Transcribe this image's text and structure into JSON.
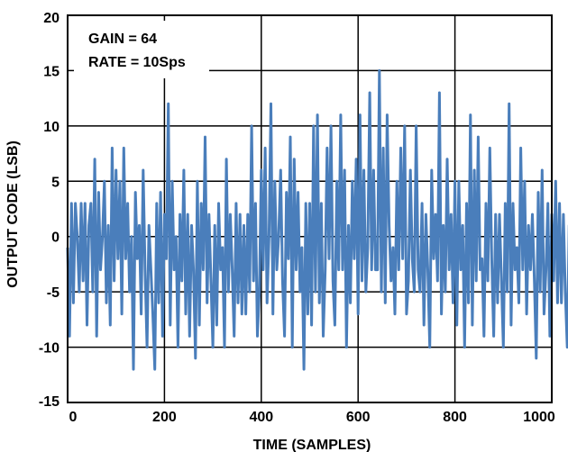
{
  "chart_data": {
    "type": "line",
    "title": "",
    "xlabel": "TIME (SAMPLES)",
    "ylabel": "OUTPUT CODE (LSB)",
    "xlim": [
      0,
      1000
    ],
    "ylim": [
      -15,
      20
    ],
    "x_ticks": [
      "0",
      "200",
      "400",
      "600",
      "800",
      "1000"
    ],
    "y_ticks": [
      "-15",
      "-10",
      "-5",
      "0",
      "5",
      "10",
      "15",
      "20"
    ],
    "grid": true,
    "annotations": [
      "GAIN = 64",
      "RATE = 10Sps"
    ],
    "line_color": "#4a7ebb",
    "x_step": 4,
    "y": [
      -1,
      -9,
      3,
      -6,
      3,
      0,
      -5,
      3,
      -4,
      3,
      -8,
      1,
      3,
      -5,
      7,
      -9,
      4,
      -3,
      0,
      5,
      -6,
      1,
      -8,
      8,
      -4,
      6,
      -2,
      5,
      -7,
      8,
      -2,
      3,
      -5,
      0,
      -12,
      4,
      -2,
      1,
      -7,
      6,
      -3,
      -10,
      1,
      -3,
      -7,
      -12,
      3,
      -6,
      4,
      -9,
      2,
      -2,
      12,
      -8,
      5,
      -3,
      0,
      -10,
      2,
      -4,
      6,
      -7,
      2,
      -9,
      1,
      -3,
      -11,
      5,
      -8,
      3,
      -3,
      9,
      -6,
      2,
      -4,
      -10,
      1,
      -8,
      3,
      -3,
      -1,
      -10,
      7,
      -5,
      2,
      -3,
      -9,
      3,
      -6,
      2,
      -7,
      1,
      -7,
      2,
      -5,
      10,
      -4,
      3,
      -9,
      -5,
      6,
      -3,
      8,
      -6,
      0,
      12,
      -7,
      5,
      -3,
      0,
      6,
      -4,
      -9,
      4,
      -2,
      9,
      -10,
      7,
      -3,
      4,
      -5,
      -1,
      -12,
      3,
      -7,
      3,
      -8,
      10,
      -5,
      11,
      -6,
      3,
      -9,
      -3,
      8,
      -2,
      10,
      -4,
      -8,
      5,
      -3,
      11,
      -3,
      6,
      -10,
      1,
      -6,
      5,
      -2,
      7,
      -7,
      11,
      -4,
      6,
      -5,
      -1,
      13,
      -3,
      6,
      -3,
      -3,
      15,
      -5,
      8,
      -6,
      11,
      1,
      -4,
      -1,
      -7,
      5,
      -3,
      8,
      -2,
      10,
      -7,
      -4,
      6,
      -2,
      -5,
      10,
      -3,
      -5,
      3,
      -8,
      2,
      -3,
      -10,
      6,
      -2,
      2,
      -4,
      13,
      -7,
      1,
      -5,
      7,
      -3,
      2,
      -6,
      5,
      -8,
      5,
      -3,
      1,
      -10,
      3,
      -6,
      11,
      -8,
      6,
      -4,
      9,
      -3,
      -2,
      -9,
      3,
      -4,
      8,
      -2,
      -9,
      2,
      -6,
      2,
      -4,
      -10,
      3,
      -5,
      12,
      -8,
      3,
      -3,
      -1,
      -6,
      8,
      -3,
      5,
      -7,
      1,
      -3,
      2,
      -4,
      -11,
      4,
      -5,
      6,
      -7,
      -3,
      3,
      -9,
      2,
      -4,
      5,
      -6,
      3,
      -6,
      2,
      -5,
      -10,
      1,
      -4,
      2,
      -8,
      -2,
      -9,
      -1
    ]
  }
}
